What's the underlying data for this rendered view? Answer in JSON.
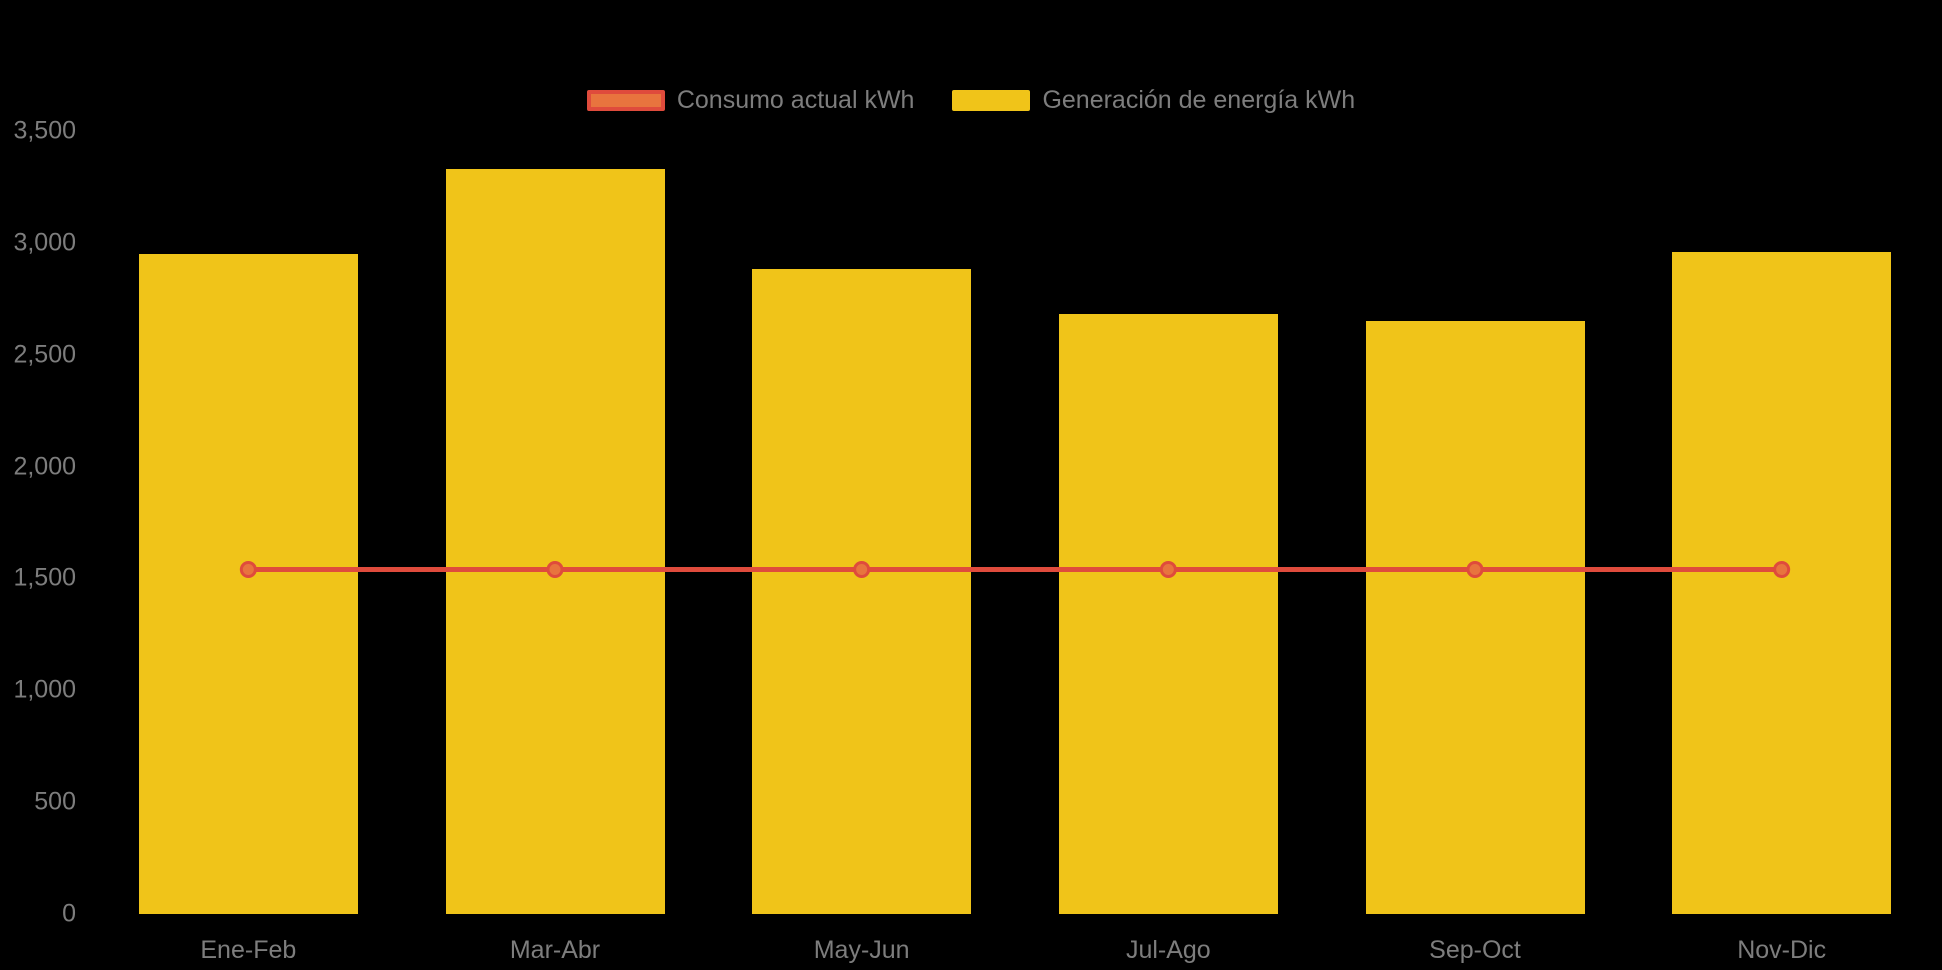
{
  "colors": {
    "background": "#000000",
    "axis_text": "#7d7d7d",
    "bar_fill": "#f0c419",
    "line_stroke": "#df4b3c",
    "marker_fill": "#e8743e",
    "legend_line_swatch_fill": "#e8743e",
    "legend_line_swatch_border": "#df4b3c"
  },
  "legend": {
    "items": [
      {
        "label": "Consumo actual kWh",
        "type": "line"
      },
      {
        "label": "Generación de energía kWh",
        "type": "bar"
      }
    ]
  },
  "chart_data": {
    "type": "bar",
    "categories": [
      "Ene-Feb",
      "Mar-Abr",
      "May-Jun",
      "Jul-Ago",
      "Sep-Oct",
      "Nov-Dic"
    ],
    "series": [
      {
        "name": "Consumo actual kWh",
        "type": "line",
        "color": "#df4b3c",
        "marker_fill": "#e8743e",
        "values": [
          1540,
          1540,
          1540,
          1540,
          1540,
          1540
        ]
      },
      {
        "name": "Generación de energía kWh",
        "type": "bar",
        "color": "#f0c419",
        "values": [
          2950,
          3330,
          2885,
          2680,
          2650,
          2960
        ]
      }
    ],
    "title": "",
    "xlabel": "",
    "ylabel": "",
    "ylim": [
      0,
      3500
    ],
    "ytick_step": 500,
    "yticks": [
      "0",
      "500",
      "1,000",
      "1,500",
      "2,000",
      "2,500",
      "3,000",
      "3,500"
    ],
    "grid": false,
    "legend_position": "top-center"
  }
}
